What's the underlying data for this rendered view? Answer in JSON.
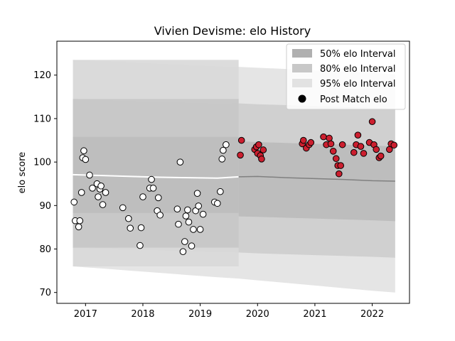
{
  "chart_data": {
    "type": "scatter",
    "title": "Vivien Devisme: elo History",
    "xlabel": "",
    "ylabel": "elo score",
    "xlim": [
      2016.5,
      2022.65
    ],
    "ylim": [
      67.5,
      127.8
    ],
    "x_ticks": [
      2017,
      2018,
      2019,
      2020,
      2021,
      2022
    ],
    "x_tick_labels": [
      "2017",
      "2018",
      "2019",
      "2020",
      "2021",
      "2022"
    ],
    "y_ticks": [
      70,
      80,
      90,
      100,
      110,
      120
    ],
    "y_tick_labels": [
      "70",
      "80",
      "90",
      "100",
      "110",
      "120"
    ],
    "grid": false,
    "legend_position": "top-right",
    "legend": [
      {
        "label": "50% elo Interval",
        "color": "#b0b0b0"
      },
      {
        "label": "80% elo Interval",
        "color": "#c8c8c8"
      },
      {
        "label": "95% elo Interval",
        "color": "#e2e2e2"
      },
      {
        "label": "Post Match elo",
        "color": "#000000"
      }
    ],
    "shaded_region": {
      "x_start": 2016.78,
      "x_end": 2019.67
    },
    "mean_line": {
      "x": [
        2016.78,
        2017.3,
        2017.8,
        2018.3,
        2018.8,
        2019.3,
        2019.67,
        2020.0,
        2020.5,
        2021.0,
        2021.5,
        2022.0,
        2022.4
      ],
      "y": [
        97.1,
        96.9,
        96.7,
        96.5,
        96.4,
        96.3,
        96.6,
        96.7,
        96.4,
        96.2,
        96.0,
        95.7,
        95.6
      ]
    },
    "intervals": {
      "x": [
        2016.78,
        2017.3,
        2017.8,
        2018.3,
        2018.8,
        2019.3,
        2019.67,
        2020.0,
        2020.5,
        2021.0,
        2021.5,
        2022.0,
        2022.4
      ],
      "p50_low": [
        88.3,
        88.1,
        88.0,
        87.9,
        87.8,
        87.6,
        87.5,
        87.4,
        87.2,
        87.0,
        86.8,
        86.6,
        86.4
      ],
      "p50_high": [
        105.8,
        105.5,
        105.3,
        105.1,
        104.9,
        104.7,
        104.8,
        104.6,
        104.4,
        104.2,
        104.0,
        103.8,
        103.6
      ],
      "p80_low": [
        80.3,
        80.1,
        79.9,
        79.7,
        79.5,
        79.3,
        79.2,
        79.0,
        78.8,
        78.6,
        78.4,
        78.2,
        78.0
      ],
      "p80_high": [
        114.5,
        114.2,
        114.0,
        113.8,
        113.6,
        113.4,
        113.5,
        113.3,
        113.1,
        112.9,
        112.7,
        112.5,
        112.3
      ],
      "p95_low": [
        76.0,
        75.5,
        75.0,
        74.5,
        74.0,
        73.5,
        73.2,
        72.8,
        72.2,
        71.6,
        71.0,
        70.4,
        70.0
      ],
      "p95_high": [
        123.5,
        123.2,
        122.9,
        122.6,
        122.3,
        122.0,
        121.9,
        121.7,
        121.4,
        121.1,
        120.8,
        120.5,
        120.2
      ]
    },
    "series": [
      {
        "name": "Post Match elo",
        "x": [
          2016.8,
          2016.82,
          2016.88,
          2016.9,
          2016.93,
          2016.95,
          2016.97,
          2017.0,
          2017.07,
          2017.12,
          2017.2,
          2017.22,
          2017.25,
          2017.27,
          2017.3,
          2017.35,
          2017.65,
          2017.75,
          2017.78,
          2017.95,
          2017.97,
          2018.0,
          2018.12,
          2018.15,
          2018.18,
          2018.25,
          2018.27,
          2018.3,
          2018.6,
          2018.62,
          2018.65,
          2018.7,
          2018.73,
          2018.75,
          2018.78,
          2018.8,
          2018.85,
          2018.88,
          2018.92,
          2018.95,
          2018.97,
          2019.0,
          2019.05,
          2019.25,
          2019.3,
          2019.35,
          2019.38,
          2019.4,
          2019.45,
          2019.7,
          2019.72,
          2019.95,
          2019.98,
          2020.0,
          2020.02,
          2020.05,
          2020.07,
          2020.1,
          2020.78,
          2020.8,
          2020.85,
          2020.9,
          2020.93,
          2021.15,
          2021.2,
          2021.25,
          2021.28,
          2021.32,
          2021.37,
          2021.4,
          2021.42,
          2021.45,
          2021.48,
          2021.68,
          2021.72,
          2021.75,
          2021.8,
          2021.85,
          2021.95,
          2022.0,
          2022.03,
          2022.07,
          2022.12,
          2022.15,
          2022.3,
          2022.33,
          2022.38
        ],
        "y": [
          90.8,
          86.5,
          85.1,
          86.5,
          93.0,
          101.0,
          102.6,
          100.6,
          97.0,
          94.0,
          95.0,
          92.0,
          93.8,
          94.5,
          90.2,
          93.0,
          89.5,
          87.0,
          84.8,
          80.8,
          84.9,
          92.0,
          94.0,
          96.0,
          94.0,
          88.8,
          91.8,
          87.8,
          89.2,
          85.7,
          100.0,
          79.4,
          81.7,
          87.6,
          89.0,
          86.2,
          80.7,
          84.5,
          88.8,
          92.8,
          89.9,
          84.5,
          88.0,
          90.8,
          90.5,
          93.2,
          100.7,
          102.7,
          104.0,
          101.6,
          105.0,
          102.9,
          103.5,
          102.0,
          104.0,
          101.5,
          100.7,
          102.8,
          104.2,
          105.0,
          103.2,
          104.0,
          104.5,
          105.8,
          104.0,
          105.5,
          104.2,
          102.5,
          100.8,
          99.2,
          97.3,
          99.2,
          104.0,
          102.2,
          104.0,
          106.2,
          103.6,
          102.0,
          104.5,
          109.3,
          104.0,
          102.9,
          101.0,
          101.4,
          102.9,
          104.2,
          103.9
        ]
      }
    ],
    "marker_style": {
      "before_shade": {
        "fill": "#ffffff",
        "edge": "#000000"
      },
      "after_shade": {
        "fill": "#cc1f2f",
        "edge": "#000000"
      }
    }
  }
}
